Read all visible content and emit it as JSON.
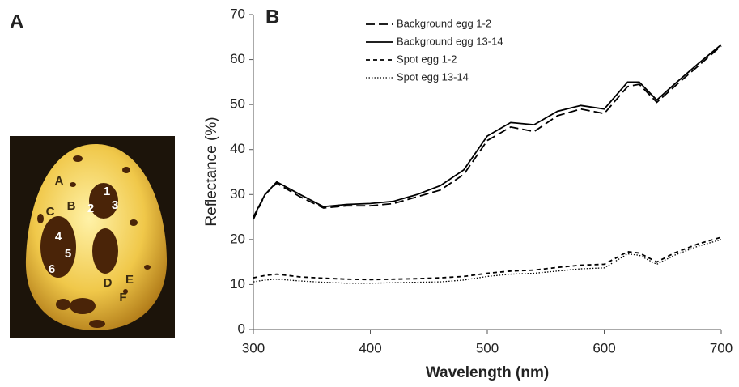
{
  "panels": {
    "a": "A",
    "b": "B"
  },
  "photo": {
    "labels": [
      "A",
      "B",
      "C",
      "D",
      "E",
      "F",
      "1",
      "2",
      "3",
      "4",
      "5",
      "6"
    ]
  },
  "chart_data": {
    "type": "line",
    "xlabel": "Wavelength (nm)",
    "ylabel": "Reflectance (%)",
    "x": [
      300,
      310,
      320,
      340,
      360,
      380,
      400,
      420,
      440,
      460,
      480,
      500,
      520,
      540,
      560,
      580,
      600,
      620,
      630,
      645,
      660,
      680,
      700
    ],
    "series": [
      {
        "name": "Background egg 1-2",
        "color": "#000000",
        "dash": "long-dash",
        "values": [
          24.5,
          30,
          32.5,
          29.5,
          27,
          27.5,
          27.5,
          28,
          29.5,
          31,
          34.5,
          42,
          45,
          44,
          47.5,
          49,
          48,
          54,
          54.5,
          50.5,
          54,
          58.5,
          63
        ]
      },
      {
        "name": "Background egg 13-14",
        "color": "#000000",
        "dash": "solid",
        "values": [
          25,
          30,
          32.8,
          30,
          27.3,
          27.8,
          28,
          28.5,
          30,
          32,
          35.5,
          43,
          46,
          45.5,
          48.5,
          49.8,
          49,
          55,
          55,
          51,
          54.5,
          59,
          63.3
        ]
      },
      {
        "name": "Spot egg 1-2",
        "color": "#000000",
        "dash": "short-dash",
        "values": [
          11.5,
          12,
          12.3,
          11.7,
          11.4,
          11.2,
          11.1,
          11.2,
          11.3,
          11.5,
          11.8,
          12.5,
          13,
          13.2,
          13.8,
          14.3,
          14.5,
          17.3,
          17,
          15,
          17,
          19,
          20.5
        ]
      },
      {
        "name": "Spot egg 13-14",
        "color": "#000000",
        "dash": "dotted",
        "values": [
          10.6,
          11,
          11.2,
          10.8,
          10.5,
          10.3,
          10.3,
          10.4,
          10.5,
          10.6,
          11,
          11.8,
          12.3,
          12.5,
          13,
          13.5,
          13.7,
          16.8,
          16.5,
          14.5,
          16.5,
          18.5,
          20
        ]
      }
    ],
    "xlim": [
      300,
      700
    ],
    "xticks": [
      300,
      400,
      500,
      600,
      700
    ],
    "ylim": [
      0,
      70
    ],
    "yticks": [
      0,
      10,
      20,
      30,
      40,
      50,
      60,
      70
    ],
    "grid": false,
    "legend": "upper-left"
  }
}
